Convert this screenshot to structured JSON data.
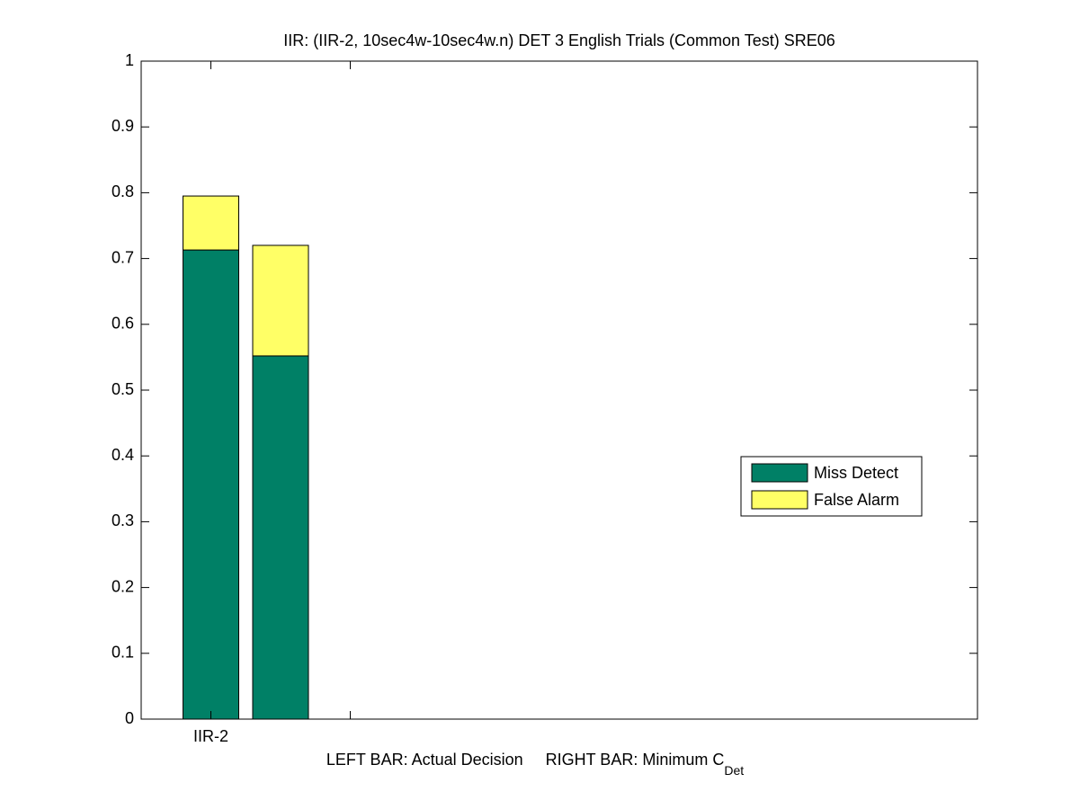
{
  "chart_data": {
    "type": "stacked_bar",
    "title": "IIR: (IIR-2, 10sec4w-10sec4w.n) DET 3 English Trials (Common Test) SRE06",
    "xlabel": {
      "text": "LEFT BAR: Actual Decision     RIGHT BAR: Minimum C",
      "subscript": "Det"
    },
    "x": [
      1,
      1.5
    ],
    "series": [
      {
        "name": "Miss Detect",
        "color": "#008066",
        "values": [
          0.713,
          0.552
        ]
      },
      {
        "name": "False Alarm",
        "color": "#ffff66",
        "values": [
          0.082,
          0.168
        ]
      }
    ],
    "xlim": [
      0.5,
      6.5
    ],
    "xticks": [
      {
        "value": 1,
        "label": "IIR-2"
      },
      {
        "value": 2,
        "label": null
      }
    ],
    "ylim": [
      0,
      1
    ],
    "yticks": [
      0,
      0.1,
      0.2,
      0.3,
      0.4,
      0.5,
      0.6,
      0.7,
      0.8,
      0.9,
      1
    ],
    "legend": "right"
  }
}
